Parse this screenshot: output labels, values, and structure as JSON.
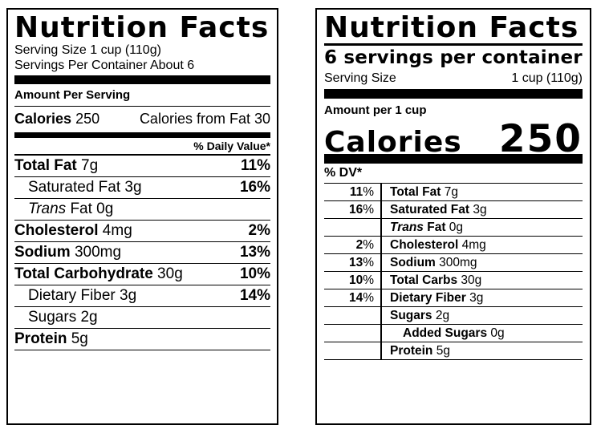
{
  "left_label": {
    "title": "Nutrition Facts",
    "serving_size_line": "Serving Size 1 cup (110g)",
    "servings_line": "Servings Per Container About 6",
    "amount_header": "Amount Per Serving",
    "calories_label": "Calories",
    "calories_value": "250",
    "calories_from_fat": "Calories from Fat 30",
    "dv_header": "% Daily Value*",
    "rows": [
      {
        "name": "Total Fat",
        "amount": "7g",
        "dv": "11%",
        "bold": true,
        "italic": false,
        "indent": 0
      },
      {
        "name": "Saturated Fat",
        "amount": "3g",
        "dv": "16%",
        "bold": false,
        "italic": false,
        "indent": 1
      },
      {
        "name": "Trans",
        "suffix": " Fat",
        "amount": "0g",
        "dv": "",
        "bold": false,
        "italic": true,
        "indent": 1
      },
      {
        "name": "Cholesterol",
        "amount": "4mg",
        "dv": "2%",
        "bold": true,
        "italic": false,
        "indent": 0
      },
      {
        "name": "Sodium",
        "amount": "300mg",
        "dv": "13%",
        "bold": true,
        "italic": false,
        "indent": 0
      },
      {
        "name": "Total Carbohydrate",
        "amount": "30g",
        "dv": "10%",
        "bold": true,
        "italic": false,
        "indent": 0
      },
      {
        "name": "Dietary Fiber",
        "amount": "3g",
        "dv": "14%",
        "bold": false,
        "italic": false,
        "indent": 1
      },
      {
        "name": "Sugars",
        "amount": "2g",
        "dv": "",
        "bold": false,
        "italic": false,
        "indent": 1
      },
      {
        "name": "Protein",
        "amount": "5g",
        "dv": "",
        "bold": true,
        "italic": false,
        "indent": 0
      }
    ]
  },
  "right_label": {
    "title": "Nutrition Facts",
    "servings_line": "6 servings per container",
    "serving_size_label": "Serving Size",
    "serving_size_value": "1 cup (110g)",
    "amount_header": "Amount per 1 cup",
    "calories_label": "Calories",
    "calories_value": "250",
    "dv_header": "% DV*",
    "rows": [
      {
        "dv": "11%",
        "name": "Total Fat",
        "amount": "7g",
        "bold": true,
        "italic": false,
        "indent": 0
      },
      {
        "dv": "16%",
        "name": "Saturated Fat",
        "amount": "3g",
        "bold": true,
        "italic": false,
        "indent": 0
      },
      {
        "dv": "",
        "name": "Trans",
        "suffix": " Fat",
        "amount": "0g",
        "bold": true,
        "italic": true,
        "indent": 0
      },
      {
        "dv": "2%",
        "name": "Cholesterol",
        "amount": "4mg",
        "bold": true,
        "italic": false,
        "indent": 0
      },
      {
        "dv": "13%",
        "name": "Sodium",
        "amount": "300mg",
        "bold": true,
        "italic": false,
        "indent": 0
      },
      {
        "dv": "10%",
        "name": "Total Carbs",
        "amount": "30g",
        "bold": true,
        "italic": false,
        "indent": 0
      },
      {
        "dv": "14%",
        "name": "Dietary Fiber",
        "amount": "3g",
        "bold": true,
        "italic": false,
        "indent": 0
      },
      {
        "dv": "",
        "name": "Sugars",
        "amount": "2g",
        "bold": true,
        "italic": false,
        "indent": 0
      },
      {
        "dv": "",
        "name": "Added Sugars",
        "amount": "0g",
        "bold": true,
        "italic": false,
        "indent": 1
      },
      {
        "dv": "",
        "name": "Protein",
        "amount": "5g",
        "bold": true,
        "italic": false,
        "indent": 0
      }
    ]
  },
  "colors": {
    "ink": "#000000",
    "background": "#ffffff"
  }
}
